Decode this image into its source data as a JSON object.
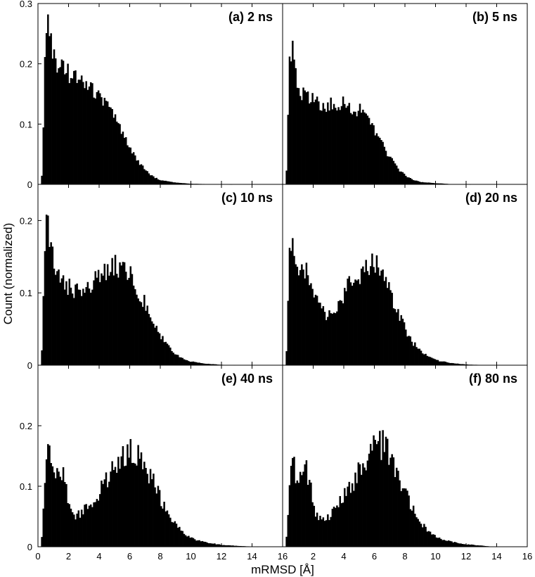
{
  "figure": {
    "ylabel": "Count (normalized)",
    "xlabel": "mRMSD [Å]",
    "xticks": [
      "0",
      "2",
      "4",
      "6",
      "8",
      "10",
      "12",
      "14",
      "16"
    ],
    "bar_color": "#000000"
  },
  "chart_data": [
    {
      "type": "bar",
      "panel_label": "(a) 2 ns",
      "bin_width": 0.1,
      "xlim": [
        0,
        16
      ],
      "ylim": [
        0,
        0.3
      ],
      "yticks": [
        "0",
        "0.1",
        "0.2",
        "0.3"
      ],
      "profile": [
        [
          0.2,
          0
        ],
        [
          0.3,
          0.03
        ],
        [
          0.4,
          0.17
        ],
        [
          0.5,
          0.24
        ],
        [
          0.6,
          0.265
        ],
        [
          0.7,
          0.26
        ],
        [
          0.8,
          0.24
        ],
        [
          1.0,
          0.22
        ],
        [
          1.3,
          0.2
        ],
        [
          1.6,
          0.19
        ],
        [
          2.0,
          0.185
        ],
        [
          2.5,
          0.178
        ],
        [
          3.0,
          0.17
        ],
        [
          3.5,
          0.16
        ],
        [
          4.0,
          0.148
        ],
        [
          4.5,
          0.13
        ],
        [
          5.0,
          0.11
        ],
        [
          5.5,
          0.085
        ],
        [
          6.0,
          0.062
        ],
        [
          6.5,
          0.04
        ],
        [
          7.0,
          0.024
        ],
        [
          7.5,
          0.013
        ],
        [
          8.0,
          0.007
        ],
        [
          9.0,
          0.003
        ],
        [
          10.0,
          0.001
        ],
        [
          11.5,
          0.0003
        ],
        [
          13.0,
          0
        ],
        [
          16.0,
          0
        ]
      ]
    },
    {
      "type": "bar",
      "panel_label": "(b) 5 ns",
      "bin_width": 0.1,
      "xlim": [
        0,
        16
      ],
      "ylim": [
        0,
        0.3
      ],
      "yticks": [
        "0",
        "0.1",
        "0.2",
        "0.3"
      ],
      "profile": [
        [
          0.2,
          0
        ],
        [
          0.3,
          0.05
        ],
        [
          0.4,
          0.2
        ],
        [
          0.5,
          0.23
        ],
        [
          0.6,
          0.225
        ],
        [
          0.8,
          0.19
        ],
        [
          1.0,
          0.165
        ],
        [
          1.3,
          0.15
        ],
        [
          1.6,
          0.142
        ],
        [
          2.0,
          0.137
        ],
        [
          2.5,
          0.133
        ],
        [
          3.0,
          0.13
        ],
        [
          3.5,
          0.132
        ],
        [
          4.0,
          0.133
        ],
        [
          4.5,
          0.13
        ],
        [
          5.0,
          0.123
        ],
        [
          5.5,
          0.11
        ],
        [
          6.0,
          0.09
        ],
        [
          6.5,
          0.068
        ],
        [
          7.0,
          0.045
        ],
        [
          7.5,
          0.027
        ],
        [
          8.0,
          0.015
        ],
        [
          8.5,
          0.008
        ],
        [
          9.0,
          0.004
        ],
        [
          10.0,
          0.002
        ],
        [
          11.0,
          0.0005
        ],
        [
          12.5,
          0
        ],
        [
          16.0,
          0
        ]
      ]
    },
    {
      "type": "bar",
      "panel_label": "(c) 10 ns",
      "bin_width": 0.1,
      "xlim": [
        0,
        16
      ],
      "ylim": [
        0,
        0.25
      ],
      "yticks": [
        "0",
        "0.1",
        "0.2"
      ],
      "profile": [
        [
          0.2,
          0
        ],
        [
          0.3,
          0.04
        ],
        [
          0.4,
          0.14
        ],
        [
          0.5,
          0.18
        ],
        [
          0.6,
          0.2
        ],
        [
          0.8,
          0.17
        ],
        [
          1.0,
          0.145
        ],
        [
          1.3,
          0.13
        ],
        [
          1.6,
          0.117
        ],
        [
          2.0,
          0.108
        ],
        [
          2.5,
          0.103
        ],
        [
          3.0,
          0.105
        ],
        [
          3.5,
          0.112
        ],
        [
          4.0,
          0.122
        ],
        [
          4.5,
          0.132
        ],
        [
          5.0,
          0.138
        ],
        [
          5.5,
          0.135
        ],
        [
          6.0,
          0.125
        ],
        [
          6.5,
          0.105
        ],
        [
          7.0,
          0.085
        ],
        [
          7.5,
          0.062
        ],
        [
          8.0,
          0.042
        ],
        [
          8.5,
          0.026
        ],
        [
          9.0,
          0.015
        ],
        [
          9.5,
          0.009
        ],
        [
          10.0,
          0.005
        ],
        [
          11.0,
          0.002
        ],
        [
          12.0,
          0.0006
        ],
        [
          13.0,
          0
        ],
        [
          16.0,
          0
        ]
      ]
    },
    {
      "type": "bar",
      "panel_label": "(d) 20 ns",
      "bin_width": 0.1,
      "xlim": [
        0,
        16
      ],
      "ylim": [
        0,
        0.25
      ],
      "yticks": [
        "0",
        "0.1",
        "0.2"
      ],
      "profile": [
        [
          0.2,
          0
        ],
        [
          0.3,
          0.04
        ],
        [
          0.4,
          0.12
        ],
        [
          0.5,
          0.17
        ],
        [
          0.6,
          0.185
        ],
        [
          0.8,
          0.15
        ],
        [
          1.0,
          0.135
        ],
        [
          1.3,
          0.125
        ],
        [
          1.6,
          0.13
        ],
        [
          2.0,
          0.1
        ],
        [
          2.5,
          0.075
        ],
        [
          3.0,
          0.07
        ],
        [
          3.5,
          0.08
        ],
        [
          4.0,
          0.1
        ],
        [
          4.5,
          0.115
        ],
        [
          5.0,
          0.125
        ],
        [
          5.5,
          0.135
        ],
        [
          6.0,
          0.14
        ],
        [
          6.5,
          0.125
        ],
        [
          7.0,
          0.1
        ],
        [
          7.5,
          0.075
        ],
        [
          8.0,
          0.05
        ],
        [
          8.5,
          0.032
        ],
        [
          9.0,
          0.02
        ],
        [
          9.5,
          0.012
        ],
        [
          10.0,
          0.007
        ],
        [
          11.0,
          0.003
        ],
        [
          12.0,
          0.001
        ],
        [
          13.0,
          0.0003
        ],
        [
          13.5,
          0
        ],
        [
          16.0,
          0
        ]
      ]
    },
    {
      "type": "bar",
      "panel_label": "(e) 40 ns",
      "bin_width": 0.1,
      "xlim": [
        0,
        16
      ],
      "ylim": [
        0,
        0.3
      ],
      "yticks": [
        "0",
        "0.1",
        "0.2"
      ],
      "profile": [
        [
          0.2,
          0
        ],
        [
          0.3,
          0.03
        ],
        [
          0.4,
          0.09
        ],
        [
          0.5,
          0.135
        ],
        [
          0.7,
          0.155
        ],
        [
          0.9,
          0.12
        ],
        [
          1.2,
          0.12
        ],
        [
          1.5,
          0.13
        ],
        [
          1.8,
          0.1
        ],
        [
          2.1,
          0.065
        ],
        [
          2.5,
          0.05
        ],
        [
          3.0,
          0.06
        ],
        [
          3.5,
          0.075
        ],
        [
          4.0,
          0.09
        ],
        [
          4.5,
          0.11
        ],
        [
          5.0,
          0.13
        ],
        [
          5.5,
          0.15
        ],
        [
          6.0,
          0.158
        ],
        [
          6.5,
          0.152
        ],
        [
          7.0,
          0.135
        ],
        [
          7.5,
          0.11
        ],
        [
          8.0,
          0.08
        ],
        [
          8.5,
          0.055
        ],
        [
          9.0,
          0.036
        ],
        [
          9.5,
          0.024
        ],
        [
          10.0,
          0.015
        ],
        [
          10.5,
          0.01
        ],
        [
          11.0,
          0.007
        ],
        [
          12.0,
          0.003
        ],
        [
          13.0,
          0.0015
        ],
        [
          14.0,
          0.0003
        ],
        [
          14.5,
          0
        ],
        [
          16.0,
          0
        ]
      ]
    },
    {
      "type": "bar",
      "panel_label": "(f) 80 ns",
      "bin_width": 0.1,
      "xlim": [
        0,
        16
      ],
      "ylim": [
        0,
        0.3
      ],
      "yticks": [
        "0",
        "0.1",
        "0.2"
      ],
      "profile": [
        [
          0.2,
          0
        ],
        [
          0.3,
          0.03
        ],
        [
          0.4,
          0.08
        ],
        [
          0.5,
          0.12
        ],
        [
          0.7,
          0.14
        ],
        [
          0.9,
          0.11
        ],
        [
          1.2,
          0.12
        ],
        [
          1.5,
          0.13
        ],
        [
          1.8,
          0.1
        ],
        [
          2.1,
          0.06
        ],
        [
          2.5,
          0.045
        ],
        [
          3.0,
          0.05
        ],
        [
          3.5,
          0.065
        ],
        [
          4.0,
          0.085
        ],
        [
          4.5,
          0.1
        ],
        [
          5.0,
          0.125
        ],
        [
          5.5,
          0.15
        ],
        [
          6.0,
          0.165
        ],
        [
          6.5,
          0.17
        ],
        [
          7.0,
          0.15
        ],
        [
          7.5,
          0.12
        ],
        [
          8.0,
          0.09
        ],
        [
          8.5,
          0.062
        ],
        [
          9.0,
          0.042
        ],
        [
          9.5,
          0.028
        ],
        [
          10.0,
          0.018
        ],
        [
          10.5,
          0.012
        ],
        [
          11.0,
          0.008
        ],
        [
          12.0,
          0.004
        ],
        [
          13.0,
          0.002
        ],
        [
          13.5,
          0.0006
        ],
        [
          14.0,
          0
        ],
        [
          16.0,
          0
        ]
      ]
    }
  ]
}
